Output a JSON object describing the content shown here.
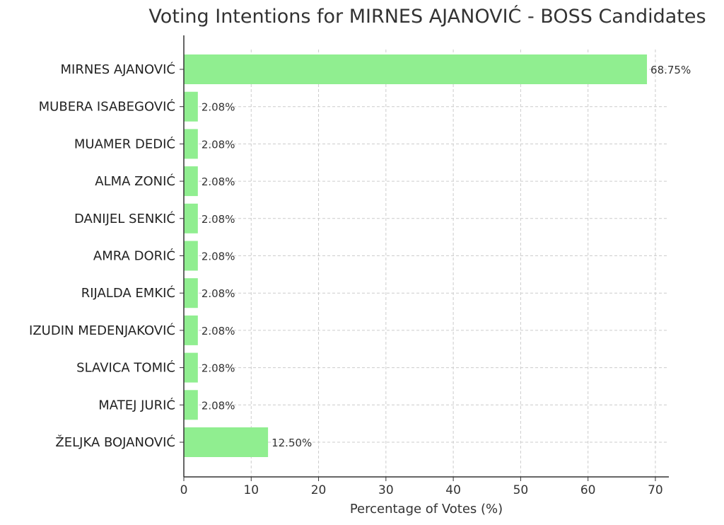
{
  "chart_data": {
    "type": "bar",
    "orientation": "horizontal",
    "title": "Voting Intentions for MIRNES AJANOVIĆ - BOSS Candidates",
    "xlabel": "Percentage of Votes (%)",
    "ylabel": "",
    "xlim": [
      0,
      72
    ],
    "xticks": [
      0,
      10,
      20,
      30,
      40,
      50,
      60,
      70
    ],
    "grid": true,
    "categories": [
      "MIRNES AJANOVIĆ",
      "MUBERA ISABEGOVIĆ",
      "MUAMER DEDIĆ",
      "ALMA ZONIĆ",
      "DANIJEL SENKIĆ",
      "AMRA DORIĆ",
      "RIJALDA EMKIĆ",
      "IZUDIN MEDENJAKOVIĆ",
      "SLAVICA TOMIĆ",
      "MATEJ JURIĆ",
      "ŽELJKA BOJANOVIĆ"
    ],
    "values": [
      68.75,
      2.08,
      2.08,
      2.08,
      2.08,
      2.08,
      2.08,
      2.08,
      2.08,
      2.08,
      12.5
    ],
    "data_labels": [
      "68.75%",
      "2.08%",
      "2.08%",
      "2.08%",
      "2.08%",
      "2.08%",
      "2.08%",
      "2.08%",
      "2.08%",
      "2.08%",
      "12.50%"
    ],
    "bar_color": "#90ee90"
  }
}
